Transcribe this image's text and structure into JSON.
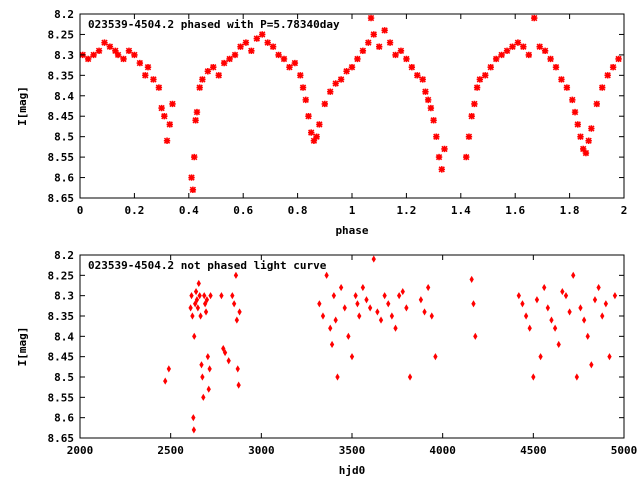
{
  "colors": {
    "marker": "#ff0000",
    "axis": "#000000",
    "background": "#ffffff"
  },
  "chart_data": [
    {
      "type": "scatter",
      "title": "023539-4504.2 phased with P=5.78340day",
      "xlabel": "phase",
      "ylabel": "I[mag]",
      "xlim": [
        0,
        2
      ],
      "ylim": [
        8.2,
        8.65
      ],
      "y_inverted": true,
      "grid": false,
      "marker": "star",
      "x_ticks": [
        0,
        0.2,
        0.4,
        0.6,
        0.8,
        1,
        1.2,
        1.4,
        1.6,
        1.8,
        2
      ],
      "x_tick_labels": [
        "0",
        "0.2",
        "0.4",
        "0.6",
        "0.8",
        "1",
        "1.2",
        "1.4",
        "1.6",
        "1.8",
        "2"
      ],
      "y_ticks": [
        8.2,
        8.25,
        8.3,
        8.35,
        8.4,
        8.45,
        8.5,
        8.55,
        8.6,
        8.65
      ],
      "y_tick_labels": [
        "8.2",
        "8.25",
        "8.3",
        "8.35",
        "8.4",
        "8.45",
        "8.5",
        "8.55",
        "8.6",
        "8.65"
      ],
      "x": [
        0.01,
        0.03,
        0.05,
        0.07,
        0.09,
        0.11,
        0.13,
        0.14,
        0.16,
        0.18,
        0.2,
        0.22,
        0.24,
        0.25,
        0.27,
        0.29,
        0.3,
        0.31,
        0.32,
        0.33,
        0.34,
        0.41,
        0.415,
        0.42,
        0.425,
        0.43,
        0.44,
        0.45,
        0.47,
        0.49,
        0.51,
        0.53,
        0.55,
        0.57,
        0.59,
        0.61,
        0.63,
        0.65,
        0.67,
        0.69,
        0.71,
        0.73,
        0.75,
        0.77,
        0.79,
        0.81,
        0.82,
        0.83,
        0.84,
        0.85,
        0.86,
        0.87,
        0.88,
        0.9,
        0.92,
        0.94,
        0.96,
        0.98,
        1.0,
        1.02,
        1.04,
        1.06,
        1.07,
        1.08,
        1.1,
        1.12,
        1.14,
        1.16,
        1.18,
        1.2,
        1.22,
        1.24,
        1.26,
        1.27,
        1.28,
        1.29,
        1.3,
        1.31,
        1.32,
        1.33,
        1.34,
        1.42,
        1.43,
        1.44,
        1.45,
        1.46,
        1.47,
        1.49,
        1.51,
        1.53,
        1.55,
        1.57,
        1.59,
        1.61,
        1.63,
        1.65,
        1.67,
        1.69,
        1.71,
        1.73,
        1.75,
        1.77,
        1.79,
        1.81,
        1.82,
        1.83,
        1.84,
        1.85,
        1.86,
        1.87,
        1.88,
        1.9,
        1.92,
        1.94,
        1.96,
        1.98
      ],
      "y": [
        8.3,
        8.31,
        8.3,
        8.29,
        8.27,
        8.28,
        8.29,
        8.3,
        8.31,
        8.29,
        8.3,
        8.32,
        8.35,
        8.33,
        8.36,
        8.38,
        8.43,
        8.45,
        8.51,
        8.47,
        8.42,
        8.6,
        8.63,
        8.55,
        8.46,
        8.44,
        8.38,
        8.36,
        8.34,
        8.33,
        8.35,
        8.32,
        8.31,
        8.3,
        8.28,
        8.27,
        8.29,
        8.26,
        8.25,
        8.27,
        8.28,
        8.3,
        8.31,
        8.33,
        8.32,
        8.35,
        8.38,
        8.41,
        8.45,
        8.49,
        8.51,
        8.5,
        8.47,
        8.42,
        8.39,
        8.37,
        8.36,
        8.34,
        8.33,
        8.31,
        8.29,
        8.27,
        8.21,
        8.25,
        8.28,
        8.24,
        8.27,
        8.3,
        8.29,
        8.31,
        8.33,
        8.35,
        8.36,
        8.39,
        8.41,
        8.43,
        8.46,
        8.5,
        8.55,
        8.58,
        8.53,
        8.55,
        8.5,
        8.45,
        8.42,
        8.38,
        8.36,
        8.35,
        8.33,
        8.31,
        8.3,
        8.29,
        8.28,
        8.27,
        8.28,
        8.3,
        8.21,
        8.28,
        8.29,
        8.31,
        8.33,
        8.36,
        8.38,
        8.41,
        8.44,
        8.47,
        8.5,
        8.53,
        8.54,
        8.51,
        8.48,
        8.42,
        8.38,
        8.35,
        8.33,
        8.31
      ]
    },
    {
      "type": "scatter",
      "title": "023539-4504.2 not phased light curve",
      "xlabel": "hjd0",
      "ylabel": "I[mag]",
      "xlim": [
        2000,
        5000
      ],
      "ylim": [
        8.2,
        8.65
      ],
      "y_inverted": true,
      "grid": false,
      "marker": "diamond",
      "x_ticks": [
        2000,
        2500,
        3000,
        3500,
        4000,
        4500,
        5000
      ],
      "x_tick_labels": [
        "2000",
        "2500",
        "3000",
        "3500",
        "4000",
        "4500",
        "5000"
      ],
      "y_ticks": [
        8.2,
        8.25,
        8.3,
        8.35,
        8.4,
        8.45,
        8.5,
        8.55,
        8.6,
        8.65
      ],
      "y_tick_labels": [
        "8.2",
        "8.25",
        "8.3",
        "8.35",
        "8.4",
        "8.45",
        "8.5",
        "8.55",
        "8.6",
        "8.65"
      ],
      "x": [
        2470,
        2490,
        2610,
        2615,
        2620,
        2625,
        2628,
        2630,
        2635,
        2640,
        2645,
        2650,
        2655,
        2660,
        2665,
        2670,
        2675,
        2680,
        2685,
        2690,
        2695,
        2700,
        2705,
        2710,
        2715,
        2720,
        2780,
        2790,
        2800,
        2820,
        2840,
        2850,
        2860,
        2865,
        2870,
        2875,
        2880,
        3320,
        3340,
        3360,
        3380,
        3390,
        3400,
        3410,
        3420,
        3440,
        3460,
        3480,
        3500,
        3520,
        3530,
        3540,
        3560,
        3580,
        3600,
        3620,
        3640,
        3660,
        3680,
        3700,
        3720,
        3740,
        3760,
        3780,
        3800,
        3820,
        3880,
        3900,
        3920,
        3940,
        3960,
        4160,
        4170,
        4180,
        4420,
        4440,
        4460,
        4480,
        4500,
        4520,
        4540,
        4560,
        4580,
        4600,
        4620,
        4640,
        4660,
        4680,
        4700,
        4720,
        4740,
        4760,
        4780,
        4800,
        4820,
        4840,
        4860,
        4880,
        4900,
        4920,
        4950
      ],
      "y": [
        8.51,
        8.48,
        8.33,
        8.3,
        8.35,
        8.6,
        8.63,
        8.4,
        8.32,
        8.29,
        8.31,
        8.33,
        8.27,
        8.3,
        8.35,
        8.47,
        8.5,
        8.55,
        8.3,
        8.32,
        8.34,
        8.31,
        8.45,
        8.53,
        8.48,
        8.3,
        8.3,
        8.43,
        8.44,
        8.46,
        8.3,
        8.32,
        8.25,
        8.36,
        8.48,
        8.52,
        8.34,
        8.32,
        8.35,
        8.25,
        8.38,
        8.42,
        8.3,
        8.36,
        8.5,
        8.28,
        8.33,
        8.4,
        8.45,
        8.3,
        8.32,
        8.35,
        8.28,
        8.31,
        8.33,
        8.21,
        8.34,
        8.36,
        8.3,
        8.32,
        8.35,
        8.38,
        8.3,
        8.29,
        8.33,
        8.5,
        8.31,
        8.34,
        8.28,
        8.35,
        8.45,
        8.26,
        8.32,
        8.4,
        8.3,
        8.32,
        8.35,
        8.38,
        8.5,
        8.31,
        8.45,
        8.28,
        8.33,
        8.36,
        8.38,
        8.42,
        8.29,
        8.3,
        8.34,
        8.25,
        8.5,
        8.33,
        8.36,
        8.4,
        8.47,
        8.31,
        8.28,
        8.35,
        8.32,
        8.45,
        8.3
      ]
    }
  ]
}
